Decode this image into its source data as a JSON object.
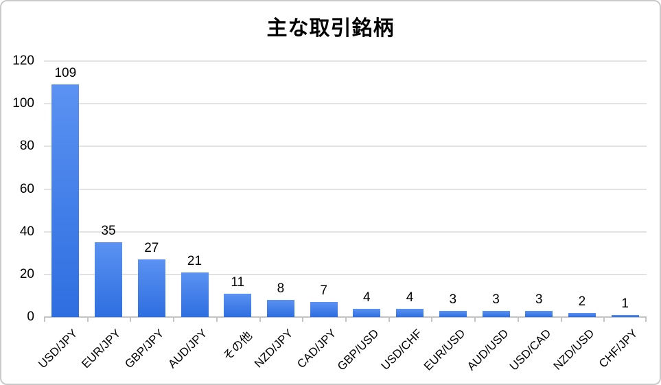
{
  "chart_data": {
    "type": "bar",
    "title": "主な取引銘柄",
    "categories": [
      "USD/JPY",
      "EUR/JPY",
      "GBP/JPY",
      "AUD/JPY",
      "その他",
      "NZD/JPY",
      "CAD/JPY",
      "GBP/USD",
      "USD/CHF",
      "EUR/USD",
      "AUD/USD",
      "USD/CAD",
      "NZD/USD",
      "CHF/JPY"
    ],
    "values": [
      109,
      35,
      27,
      21,
      11,
      8,
      7,
      4,
      4,
      3,
      3,
      3,
      2,
      1
    ],
    "xlabel": "",
    "ylabel": "",
    "ylim": [
      0,
      120
    ],
    "ytick_step": 20,
    "grid": "horizontal",
    "legend": "none",
    "value_labels_shown": true,
    "colors": {
      "bar_gradient_top": "#5b92f2",
      "bar_gradient_bottom": "#2e6ee0",
      "gridline": "#e2e2e2",
      "axis_line": "#c4c4c4",
      "text": "#000000",
      "background": "#ffffff",
      "frame_border": "#c9c9c9"
    }
  }
}
